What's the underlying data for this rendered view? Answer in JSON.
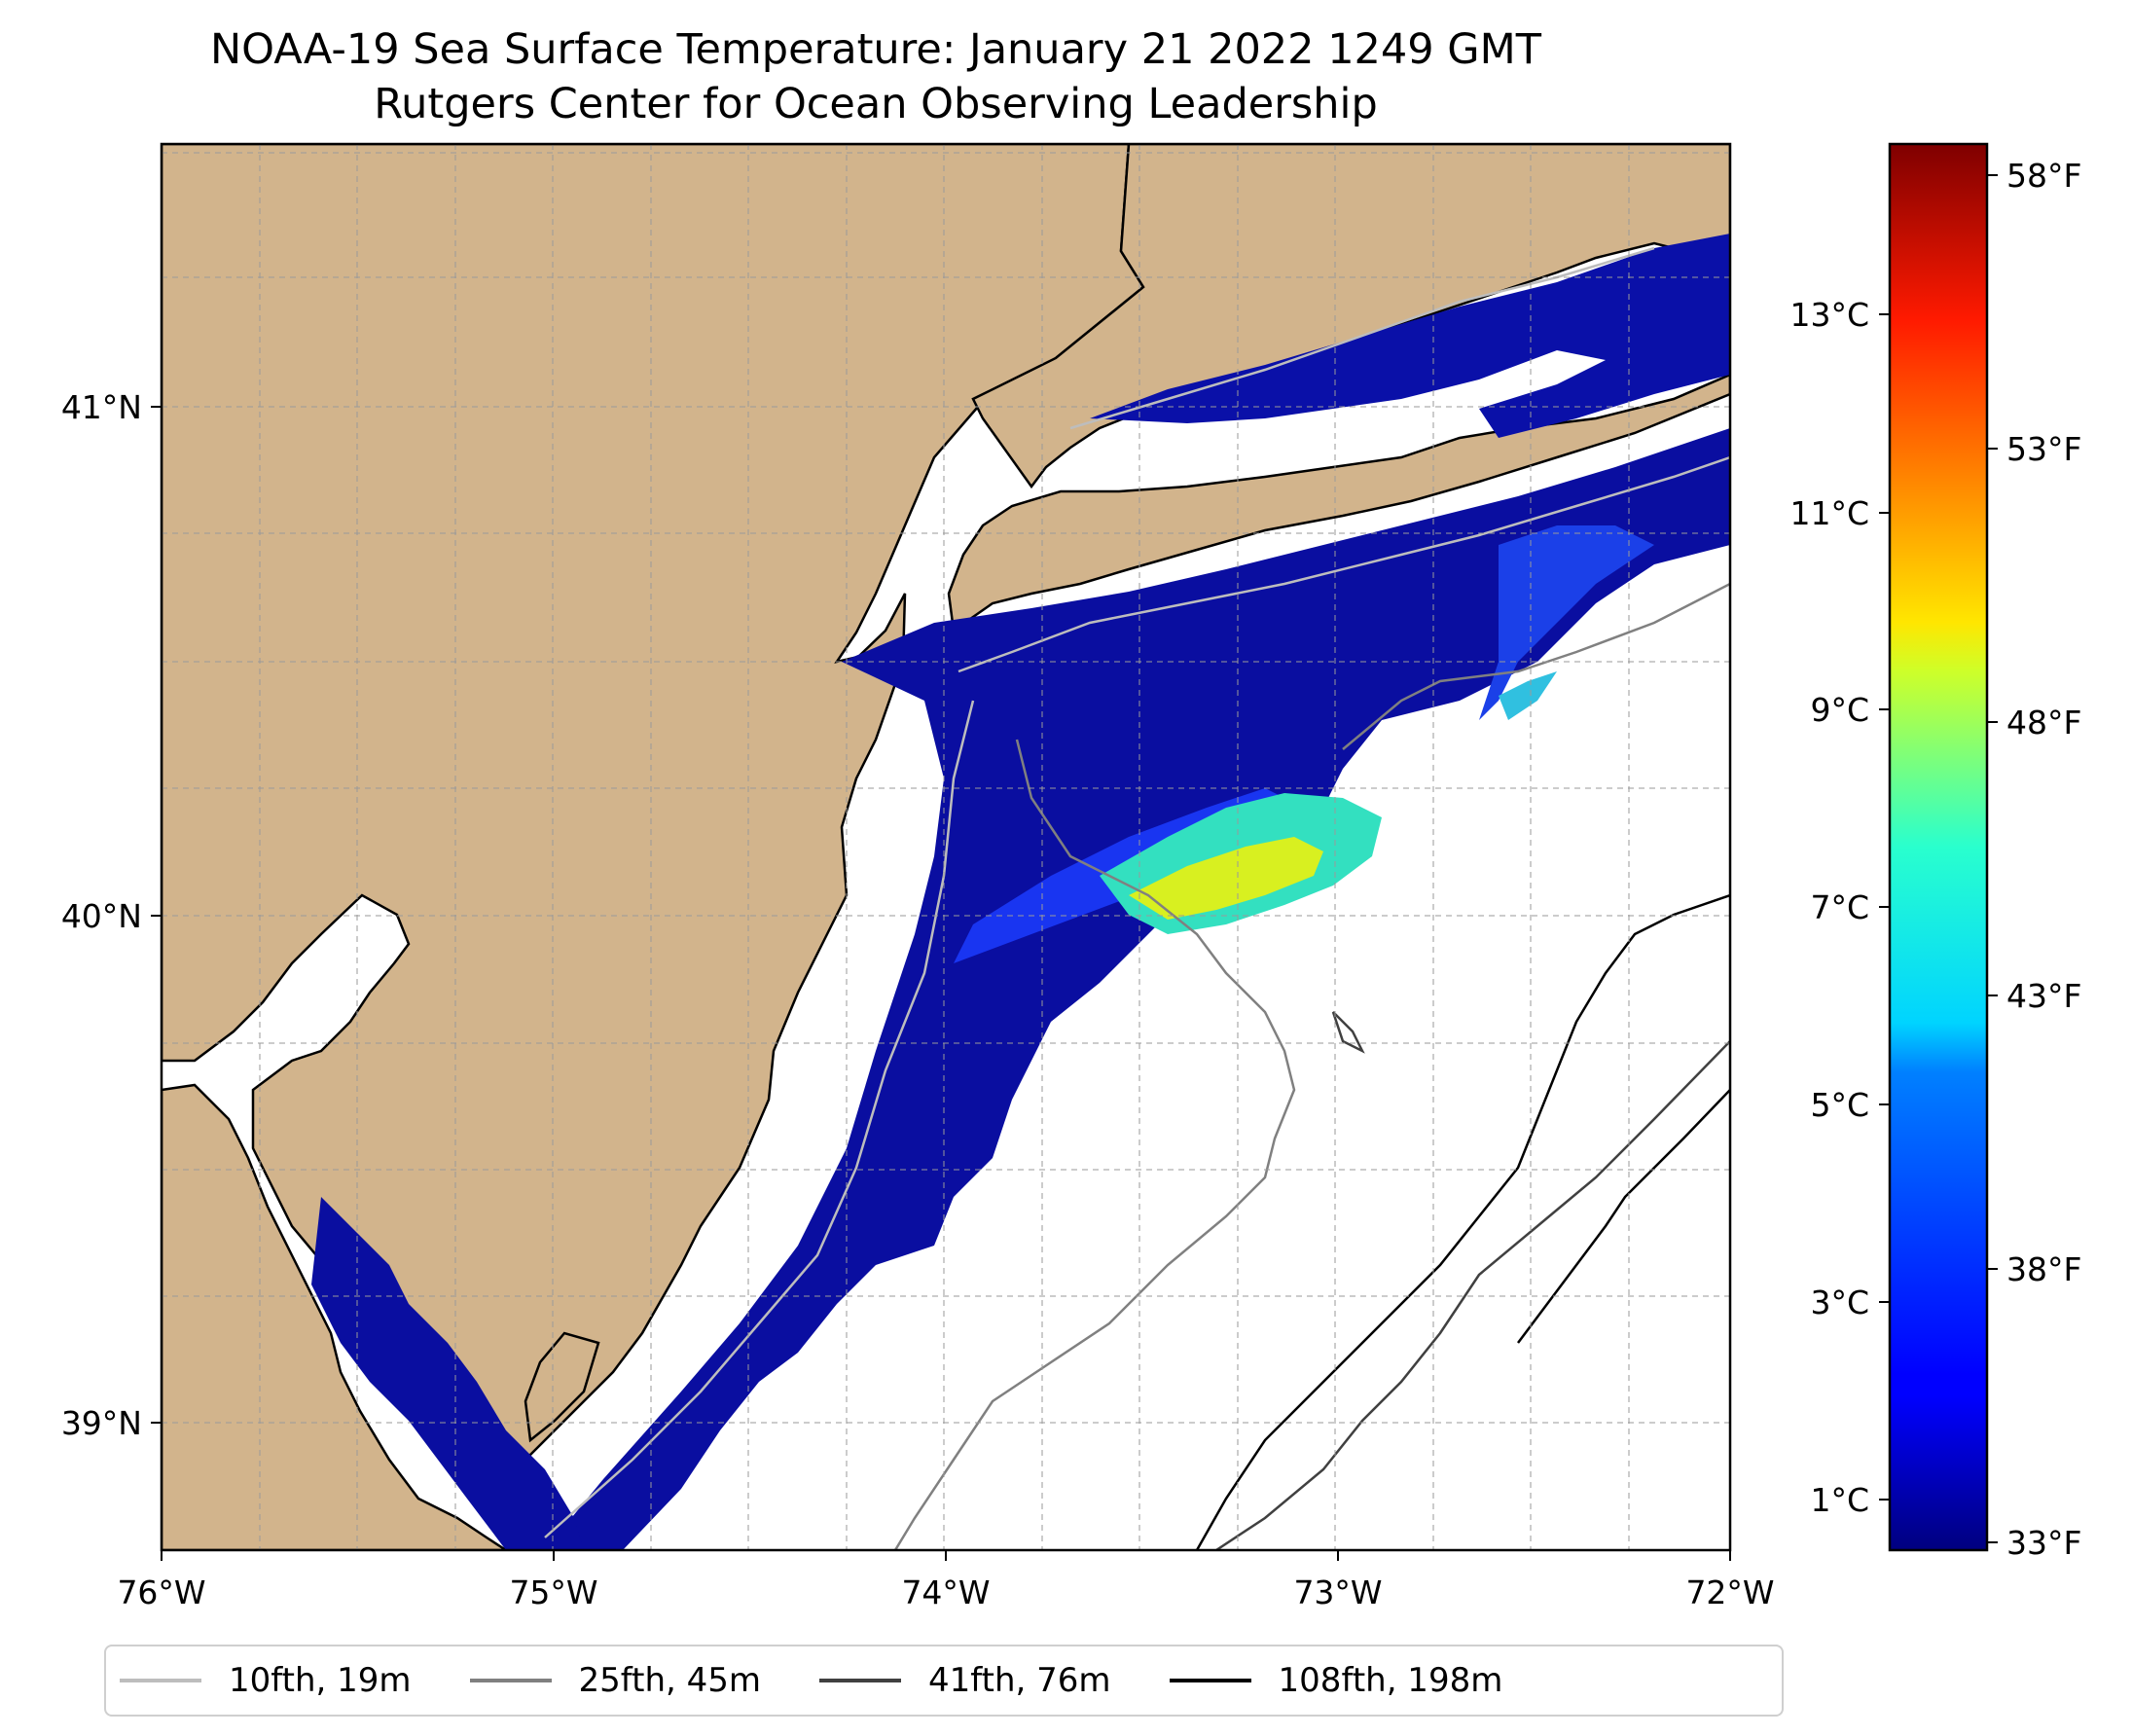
{
  "title": {
    "line1": "NOAA-19 Sea Surface Temperature: January 21 2022 1249 GMT",
    "line2": "Rutgers Center for Ocean Observing Leadership"
  },
  "map": {
    "longitude_ticks": [
      "76°W",
      "75°W",
      "74°W",
      "73°W",
      "72°W"
    ],
    "latitude_ticks": [
      "41°N",
      "40°N",
      "39°N"
    ],
    "land_color": "#d2b48c",
    "ocean_no_data_color": "#ffffff",
    "gridlines": "dashed"
  },
  "colorbar": {
    "celsius_ticks": [
      "13°C",
      "11°C",
      "9°C",
      "7°C",
      "5°C",
      "3°C",
      "1°C"
    ],
    "fahrenheit_ticks": [
      "58°F",
      "53°F",
      "48°F",
      "43°F",
      "38°F",
      "33°F"
    ],
    "colormap": "jet",
    "range_f": [
      33,
      59
    ]
  },
  "legend": {
    "items": [
      {
        "label": "10fth, 19m",
        "color": "#bdbdbd"
      },
      {
        "label": "25fth, 45m",
        "color": "#808080"
      },
      {
        "label": "41fth, 76m",
        "color": "#404040"
      },
      {
        "label": "108fth, 198m",
        "color": "#000000"
      }
    ]
  }
}
